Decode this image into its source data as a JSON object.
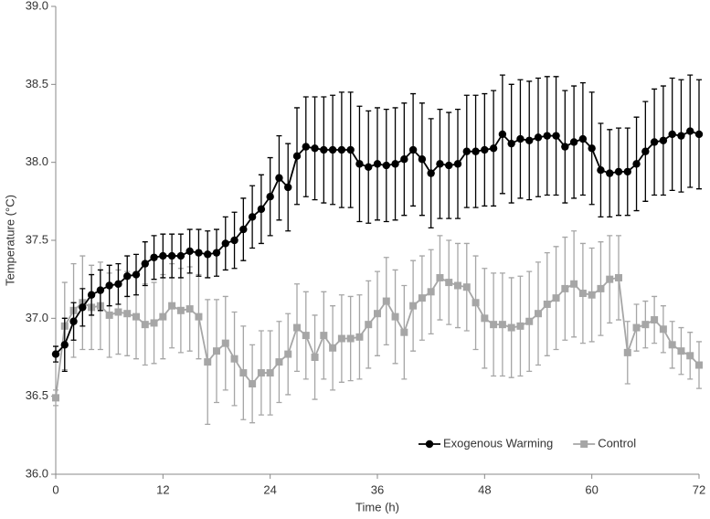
{
  "chart_data": {
    "type": "line",
    "xlabel": "Time (h)",
    "ylabel": "Temperature (°C)",
    "x": [
      0,
      1,
      2,
      3,
      4,
      5,
      6,
      7,
      8,
      9,
      10,
      11,
      12,
      13,
      14,
      15,
      16,
      17,
      18,
      19,
      20,
      21,
      22,
      23,
      24,
      25,
      26,
      27,
      28,
      29,
      30,
      31,
      32,
      33,
      34,
      35,
      36,
      37,
      38,
      39,
      40,
      41,
      42,
      43,
      44,
      45,
      46,
      47,
      48,
      49,
      50,
      51,
      52,
      53,
      54,
      55,
      56,
      57,
      58,
      59,
      60,
      61,
      62,
      63,
      64,
      65,
      66,
      67,
      68,
      69,
      70,
      71,
      72
    ],
    "series": [
      {
        "name": "Exogenous Warming",
        "color": "#000000",
        "marker": "circle",
        "values": [
          36.77,
          36.83,
          36.98,
          37.07,
          37.15,
          37.18,
          37.21,
          37.22,
          37.27,
          37.28,
          37.35,
          37.39,
          37.4,
          37.4,
          37.4,
          37.43,
          37.42,
          37.41,
          37.42,
          37.48,
          37.5,
          37.57,
          37.65,
          37.7,
          37.78,
          37.9,
          37.84,
          38.04,
          38.1,
          38.09,
          38.08,
          38.08,
          38.08,
          38.08,
          37.99,
          37.97,
          37.99,
          37.98,
          37.99,
          38.02,
          38.08,
          38.02,
          37.93,
          37.99,
          37.98,
          37.99,
          38.07,
          38.07,
          38.08,
          38.09,
          38.18,
          38.12,
          38.15,
          38.14,
          38.16,
          38.17,
          38.17,
          38.1,
          38.13,
          38.15,
          38.09,
          37.95,
          37.93,
          37.94,
          37.94,
          37.99,
          38.07,
          38.13,
          38.14,
          38.18,
          38.17,
          38.2,
          38.18
        ],
        "errors": [
          0.05,
          0.17,
          0.12,
          0.12,
          0.13,
          0.13,
          0.13,
          0.13,
          0.13,
          0.13,
          0.14,
          0.14,
          0.14,
          0.14,
          0.14,
          0.14,
          0.15,
          0.15,
          0.15,
          0.17,
          0.18,
          0.2,
          0.2,
          0.22,
          0.25,
          0.27,
          0.28,
          0.31,
          0.32,
          0.33,
          0.34,
          0.35,
          0.37,
          0.37,
          0.37,
          0.36,
          0.36,
          0.36,
          0.36,
          0.36,
          0.36,
          0.36,
          0.35,
          0.35,
          0.34,
          0.35,
          0.36,
          0.36,
          0.36,
          0.37,
          0.38,
          0.38,
          0.38,
          0.38,
          0.38,
          0.38,
          0.38,
          0.36,
          0.36,
          0.36,
          0.36,
          0.3,
          0.28,
          0.28,
          0.28,
          0.3,
          0.32,
          0.34,
          0.35,
          0.36,
          0.36,
          0.36,
          0.35
        ]
      },
      {
        "name": "Control",
        "color": "#a6a6a6",
        "marker": "square",
        "values": [
          36.49,
          36.95,
          37.05,
          37.1,
          37.07,
          37.08,
          37.02,
          37.04,
          37.03,
          37.01,
          36.96,
          36.97,
          37.01,
          37.08,
          37.05,
          37.06,
          37.01,
          36.72,
          36.79,
          36.84,
          36.74,
          36.65,
          36.58,
          36.65,
          36.65,
          36.72,
          36.77,
          36.94,
          36.89,
          36.75,
          36.89,
          36.81,
          36.87,
          36.87,
          36.88,
          36.96,
          37.03,
          37.11,
          37.01,
          36.91,
          37.08,
          37.13,
          37.17,
          37.26,
          37.23,
          37.21,
          37.2,
          37.1,
          37.0,
          36.96,
          36.96,
          36.94,
          36.95,
          36.98,
          37.03,
          37.09,
          37.13,
          37.19,
          37.22,
          37.16,
          37.15,
          37.19,
          37.25,
          37.26,
          36.78,
          36.94,
          36.96,
          36.99,
          36.93,
          36.83,
          36.79,
          36.76,
          36.7
        ],
        "errors": [
          0.05,
          0.28,
          0.3,
          0.3,
          0.27,
          0.28,
          0.27,
          0.27,
          0.27,
          0.27,
          0.26,
          0.26,
          0.27,
          0.27,
          0.27,
          0.27,
          0.27,
          0.4,
          0.33,
          0.3,
          0.3,
          0.3,
          0.25,
          0.27,
          0.27,
          0.26,
          0.26,
          0.28,
          0.28,
          0.27,
          0.28,
          0.27,
          0.28,
          0.27,
          0.27,
          0.28,
          0.27,
          0.28,
          0.3,
          0.3,
          0.29,
          0.27,
          0.27,
          0.27,
          0.27,
          0.27,
          0.28,
          0.3,
          0.32,
          0.33,
          0.33,
          0.32,
          0.32,
          0.32,
          0.33,
          0.33,
          0.33,
          0.33,
          0.34,
          0.32,
          0.3,
          0.3,
          0.28,
          0.27,
          0.2,
          0.15,
          0.15,
          0.15,
          0.15,
          0.15,
          0.15,
          0.15,
          0.15
        ]
      }
    ],
    "xlim": [
      0,
      72
    ],
    "xticks": [
      0,
      12,
      24,
      36,
      48,
      60,
      72
    ],
    "ylim": [
      36,
      39
    ],
    "yticks": [
      {
        "value": 36,
        "label": "36.0"
      },
      {
        "value": 36.5,
        "label": "36.5"
      },
      {
        "value": 37,
        "label": "37.0"
      },
      {
        "value": 37.5,
        "label": "37.5"
      },
      {
        "value": 38,
        "label": "38.0"
      },
      {
        "value": 38.5,
        "label": "38.5"
      },
      {
        "value": 39,
        "label": "39.0"
      }
    ],
    "grid": false,
    "legend": "lower right"
  }
}
